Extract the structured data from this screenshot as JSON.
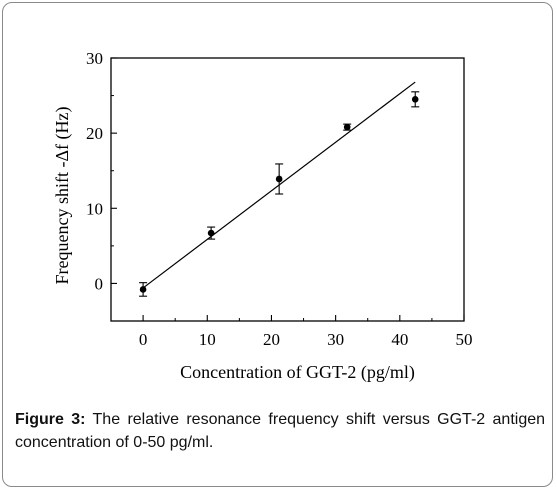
{
  "caption": {
    "label": "Figure",
    "number": "3:",
    "text": "The relative resonance frequency shift versus GGT-2 antigen concentration of 0-50 pg/ml."
  },
  "chart_data": {
    "type": "scatter",
    "xlabel": "Concentration of GGT-2  (pg/ml)",
    "ylabel": "Frequency shift -Δf (Hz)",
    "xlim": [
      -5,
      50
    ],
    "ylim": [
      -5,
      30
    ],
    "xticks": [
      0,
      10,
      20,
      30,
      40,
      50
    ],
    "yticks": [
      0,
      10,
      20,
      30
    ],
    "grid": false,
    "series": [
      {
        "x": [
          0,
          10.6,
          21.2,
          31.8,
          42.4
        ],
        "y": [
          -0.8,
          6.7,
          13.9,
          20.8,
          24.5
        ],
        "err": [
          0.9,
          0.8,
          2.0,
          0.4,
          1.0
        ]
      }
    ],
    "fit_line": {
      "x": [
        0,
        42.4
      ],
      "y": [
        -0.6,
        26.8
      ]
    }
  }
}
